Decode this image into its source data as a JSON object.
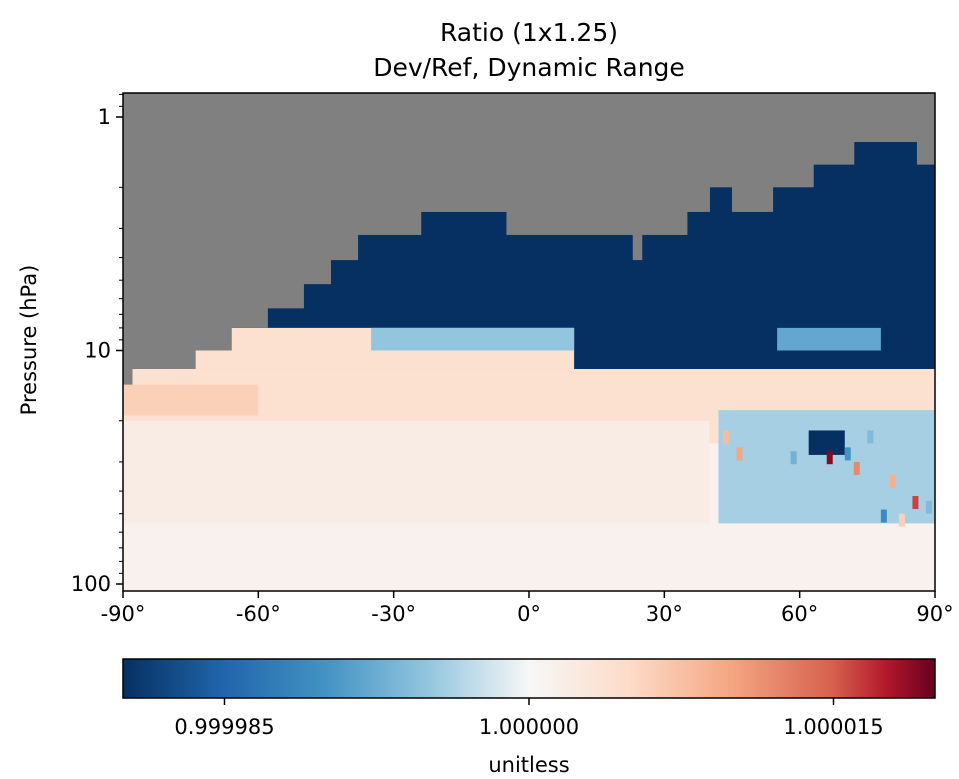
{
  "chart_data": {
    "type": "heatmap",
    "title": [
      "Ratio (1x1.25)",
      "Dev/Ref, Dynamic Range"
    ],
    "xlabel": "",
    "ylabel": "Pressure (hPa)",
    "x_ticks": [
      {
        "value": -90,
        "label": "-90°"
      },
      {
        "value": -60,
        "label": "-60°"
      },
      {
        "value": -30,
        "label": "-30°"
      },
      {
        "value": 0,
        "label": "0°"
      },
      {
        "value": 30,
        "label": "30°"
      },
      {
        "value": 60,
        "label": "60°"
      },
      {
        "value": 90,
        "label": "90°"
      }
    ],
    "xlim": [
      -90,
      90
    ],
    "y_scale": "log",
    "y_inverted": true,
    "ylim": [
      110,
      0.78
    ],
    "y_ticks": [
      {
        "value": 1,
        "label": "1"
      },
      {
        "value": 10,
        "label": "10"
      },
      {
        "value": 100,
        "label": "100"
      }
    ],
    "missing_color": "#808080",
    "colormap": "RdBu_r",
    "color_range": [
      0.99998,
      1.00002
    ],
    "colorbar": {
      "label": "unitless",
      "ticks": [
        {
          "value": 0.999985,
          "label": "0.999985"
        },
        {
          "value": 1.0,
          "label": "1.000000"
        },
        {
          "value": 1.000015,
          "label": "1.000015"
        }
      ]
    },
    "valid_top_boundary_hPa": [
      {
        "lat_range": [
          -90,
          -88
        ],
        "top": 14
      },
      {
        "lat_range": [
          -88,
          -74
        ],
        "top": 12
      },
      {
        "lat_range": [
          -74,
          -66
        ],
        "top": 10
      },
      {
        "lat_range": [
          -66,
          -58
        ],
        "top": 8
      },
      {
        "lat_range": [
          -58,
          -50
        ],
        "top": 6.6
      },
      {
        "lat_range": [
          -50,
          -44
        ],
        "top": 5.2
      },
      {
        "lat_range": [
          -44,
          -38
        ],
        "top": 4.1
      },
      {
        "lat_range": [
          -38,
          -24
        ],
        "top": 3.2
      },
      {
        "lat_range": [
          -24,
          -5
        ],
        "top": 2.55
      },
      {
        "lat_range": [
          -5,
          23
        ],
        "top": 3.2
      },
      {
        "lat_range": [
          23,
          25
        ],
        "top": 4.1
      },
      {
        "lat_range": [
          25,
          35
        ],
        "top": 3.2
      },
      {
        "lat_range": [
          35,
          40
        ],
        "top": 2.55
      },
      {
        "lat_range": [
          40,
          45
        ],
        "top": 2.0
      },
      {
        "lat_range": [
          45,
          54
        ],
        "top": 2.55
      },
      {
        "lat_range": [
          54,
          63
        ],
        "top": 2.0
      },
      {
        "lat_range": [
          63,
          72
        ],
        "top": 1.6
      },
      {
        "lat_range": [
          72,
          86
        ],
        "top": 1.28
      },
      {
        "lat_range": [
          86,
          90
        ],
        "top": 1.6
      }
    ],
    "data_bands": [
      {
        "p_top": 1.0,
        "p_bottom": 14,
        "value": 0.99998,
        "note": "saturated blue band below missing region"
      },
      {
        "p_top": 8,
        "p_bottom": 12,
        "lat_range": [
          -80,
          10
        ],
        "value": 1.000004
      },
      {
        "p_top": 8,
        "p_bottom": 10,
        "lat_range": [
          -35,
          10
        ],
        "value": 0.999995
      },
      {
        "p_top": 8,
        "p_bottom": 10,
        "lat_range": [
          55,
          78
        ],
        "value": 0.999992
      },
      {
        "p_top": 12,
        "p_bottom": 25,
        "lat_range": [
          -90,
          90
        ],
        "value": 1.000004
      },
      {
        "p_top": 14,
        "p_bottom": 19,
        "lat_range": [
          -90,
          -60
        ],
        "value": 1.000006
      },
      {
        "p_top": 20,
        "p_bottom": 60,
        "lat_range": [
          -90,
          40
        ],
        "value": 1.000002
      },
      {
        "p_top": 18,
        "p_bottom": 60,
        "lat_range": [
          42,
          90
        ],
        "value": 0.999996
      },
      {
        "p_top": 22,
        "p_bottom": 28,
        "lat_range": [
          62,
          70
        ],
        "value": 0.99998
      },
      {
        "p_top": 55,
        "p_bottom": 110,
        "lat_range": [
          -90,
          90
        ],
        "value": 1.000001
      }
    ]
  }
}
